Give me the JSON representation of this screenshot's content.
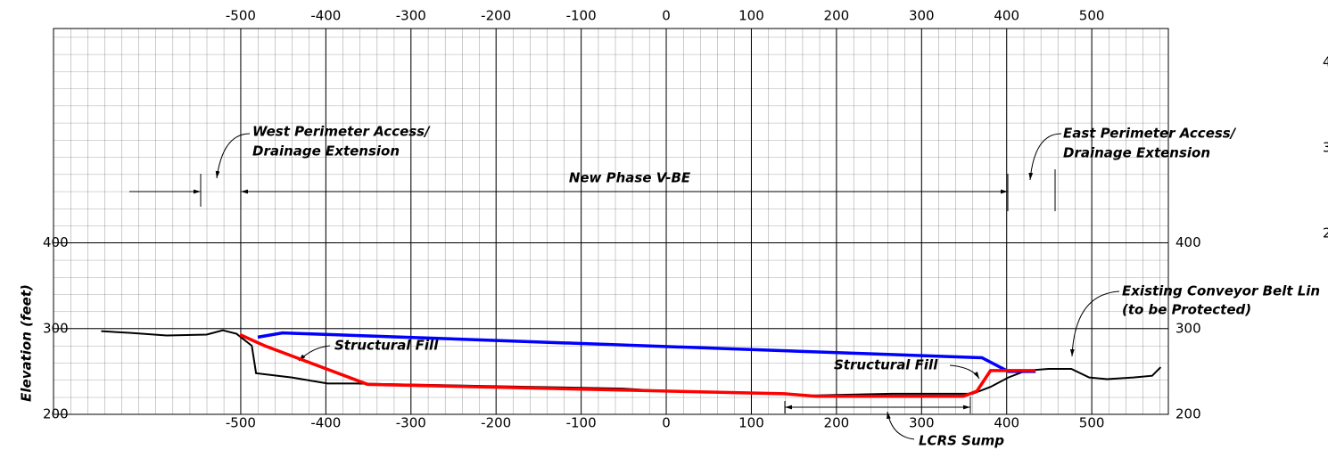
{
  "chart_data": {
    "type": "line",
    "y_label": "Elevation (feet)",
    "xlim": [
      -720,
      590
    ],
    "ylim": [
      200,
      650
    ],
    "xticks": [
      -500,
      -400,
      -300,
      -200,
      -100,
      0,
      100,
      200,
      300,
      400,
      500
    ],
    "yticks": [
      200,
      300,
      400
    ],
    "grid": true,
    "series": [
      {
        "color": "#000000",
        "x": [
          -664,
          -629,
          -587,
          -540,
          -521,
          -505,
          -487,
          -482,
          -440,
          -398,
          -366,
          -156,
          -51,
          0,
          139,
          171,
          265,
          360,
          381,
          402,
          423,
          449,
          476,
          497,
          518,
          549,
          571,
          581
        ],
        "values": [
          297,
          295,
          292,
          293,
          298,
          294,
          280,
          248,
          243,
          236,
          236,
          232,
          230,
          227,
          224,
          222,
          224,
          224,
          232,
          243,
          251,
          253,
          253,
          243,
          241,
          243,
          245,
          255
        ]
      },
      {
        "color": "#0000ff",
        "x": [
          -480,
          -451,
          371,
          402,
          434
        ],
        "values": [
          290,
          295,
          266,
          250,
          250
        ]
      },
      {
        "color": "#ff0000",
        "x": [
          -501,
          -472,
          -351,
          139,
          176,
          349,
          365,
          381,
          402,
          434
        ],
        "values": [
          293,
          280,
          235,
          224,
          221,
          221,
          227,
          251,
          251,
          251
        ]
      }
    ],
    "annotations": [
      "West Perimeter Access/",
      "Drainage Extension",
      "New Phase V-BE",
      "East Perimeter Access/",
      "Drainage Extension",
      "Structural Fill",
      "Structural Fill",
      "Existing Conveyor Belt Lin",
      "(to be Protected)",
      "LCRS Sump"
    ],
    "edge_labels": [
      "4",
      "3",
      "2"
    ]
  }
}
